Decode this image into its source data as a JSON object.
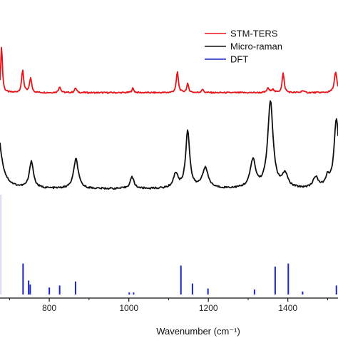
{
  "chart_data": {
    "type": "line",
    "xlabel": "Wavenumber (cm⁻¹)",
    "xlim": [
      676,
      1526
    ],
    "x_ticks": [
      800,
      1000,
      1200,
      1400
    ],
    "y_ticks": [],
    "grid": false,
    "legend_position": "top-right",
    "series": [
      {
        "name": "STM-TERS",
        "color": "#e8141a",
        "style": "line",
        "baseline": 0.0,
        "peaks": [
          {
            "x": 680,
            "y": 3.0,
            "w": 2.5
          },
          {
            "x": 733,
            "y": 1.45,
            "w": 3
          },
          {
            "x": 753,
            "y": 0.95,
            "w": 3
          },
          {
            "x": 826,
            "y": 0.4,
            "w": 3
          },
          {
            "x": 866,
            "y": 0.3,
            "w": 3
          },
          {
            "x": 1010,
            "y": 0.28,
            "w": 3
          },
          {
            "x": 1122,
            "y": 1.35,
            "w": 3
          },
          {
            "x": 1148,
            "y": 0.55,
            "w": 3
          },
          {
            "x": 1185,
            "y": 0.22,
            "w": 3
          },
          {
            "x": 1350,
            "y": 0.3,
            "w": 3
          },
          {
            "x": 1362,
            "y": 0.25,
            "w": 3
          },
          {
            "x": 1388,
            "y": 1.25,
            "w": 3
          },
          {
            "x": 1437,
            "y": 0.15,
            "w": 3
          },
          {
            "x": 1520,
            "y": 1.3,
            "w": 4
          }
        ]
      },
      {
        "name": "Micro-raman",
        "color": "#111111",
        "style": "line",
        "baseline": 0.0,
        "peaks": [
          {
            "x": 668,
            "y": 3.4,
            "w": 12
          },
          {
            "x": 755,
            "y": 1.4,
            "w": 6
          },
          {
            "x": 867,
            "y": 1.55,
            "w": 7
          },
          {
            "x": 1008,
            "y": 0.6,
            "w": 6
          },
          {
            "x": 1118,
            "y": 0.75,
            "w": 7
          },
          {
            "x": 1148,
            "y": 3.0,
            "w": 6
          },
          {
            "x": 1192,
            "y": 1.05,
            "w": 9
          },
          {
            "x": 1312,
            "y": 1.45,
            "w": 8
          },
          {
            "x": 1356,
            "y": 4.5,
            "w": 8
          },
          {
            "x": 1393,
            "y": 0.7,
            "w": 8
          },
          {
            "x": 1470,
            "y": 0.55,
            "w": 8
          },
          {
            "x": 1500,
            "y": 0.5,
            "w": 6
          },
          {
            "x": 1522,
            "y": 3.6,
            "w": 7
          }
        ]
      },
      {
        "name": "DFT",
        "color": "#1a24c8",
        "style": "stick",
        "sticks": [
          {
            "x": 678,
            "y": 5.0
          },
          {
            "x": 734,
            "y": 1.55
          },
          {
            "x": 748,
            "y": 0.7
          },
          {
            "x": 752,
            "y": 0.5
          },
          {
            "x": 800,
            "y": 0.35
          },
          {
            "x": 826,
            "y": 0.45
          },
          {
            "x": 866,
            "y": 0.65
          },
          {
            "x": 1001,
            "y": 0.1
          },
          {
            "x": 1012,
            "y": 0.1
          },
          {
            "x": 1131,
            "y": 1.45
          },
          {
            "x": 1160,
            "y": 0.55
          },
          {
            "x": 1199,
            "y": 0.3
          },
          {
            "x": 1316,
            "y": 0.25
          },
          {
            "x": 1368,
            "y": 1.4
          },
          {
            "x": 1401,
            "y": 1.55
          },
          {
            "x": 1437,
            "y": 0.15
          },
          {
            "x": 1522,
            "y": 0.45
          }
        ]
      }
    ]
  }
}
